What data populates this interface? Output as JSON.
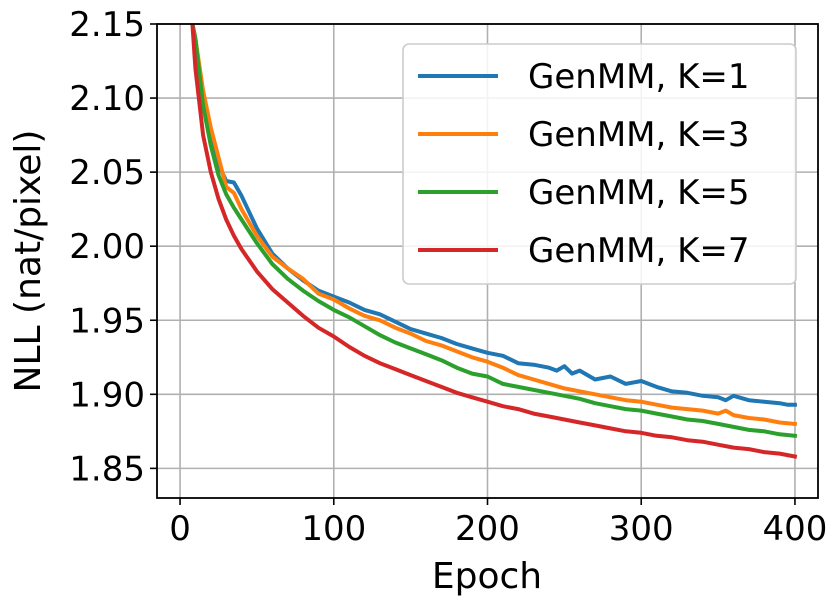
{
  "chart_data": {
    "type": "line",
    "title": "",
    "xlabel": "Epoch",
    "ylabel": "NLL (nat/pixel)",
    "xlim": [
      -15,
      415
    ],
    "ylim": [
      1.83,
      2.15
    ],
    "xticks": [
      0,
      100,
      200,
      300,
      400
    ],
    "xtick_labels": [
      "0",
      "100",
      "200",
      "300",
      "400"
    ],
    "yticks": [
      1.85,
      1.9,
      1.95,
      2.0,
      2.05,
      2.1,
      2.15
    ],
    "ytick_labels": [
      "1.85",
      "1.90",
      "1.95",
      "2.00",
      "2.05",
      "2.10",
      "2.15"
    ],
    "grid": true,
    "legend": "top-right",
    "series": [
      {
        "name": "GenMM, K=1",
        "color": "#1f77b4",
        "x": [
          8,
          10,
          15,
          20,
          25,
          30,
          35,
          40,
          50,
          60,
          70,
          80,
          90,
          100,
          110,
          120,
          130,
          140,
          150,
          160,
          170,
          180,
          190,
          200,
          210,
          220,
          230,
          240,
          245,
          250,
          255,
          260,
          270,
          280,
          290,
          300,
          310,
          320,
          330,
          340,
          350,
          355,
          360,
          370,
          380,
          390,
          395,
          400
        ],
        "y": [
          2.15,
          2.14,
          2.1,
          2.075,
          2.055,
          2.044,
          2.043,
          2.034,
          2.012,
          1.995,
          1.985,
          1.977,
          1.97,
          1.966,
          1.962,
          1.957,
          1.954,
          1.949,
          1.944,
          1.941,
          1.938,
          1.934,
          1.931,
          1.928,
          1.926,
          1.921,
          1.92,
          1.918,
          1.916,
          1.919,
          1.914,
          1.916,
          1.91,
          1.912,
          1.907,
          1.909,
          1.905,
          1.902,
          1.901,
          1.899,
          1.898,
          1.896,
          1.899,
          1.896,
          1.895,
          1.894,
          1.893,
          1.893
        ]
      },
      {
        "name": "GenMM, K=3",
        "color": "#ff7f0e",
        "x": [
          8,
          10,
          15,
          20,
          25,
          30,
          35,
          40,
          50,
          60,
          70,
          80,
          90,
          100,
          110,
          120,
          130,
          140,
          150,
          160,
          170,
          180,
          190,
          200,
          210,
          220,
          230,
          240,
          250,
          260,
          270,
          280,
          290,
          300,
          310,
          320,
          330,
          340,
          350,
          355,
          360,
          370,
          380,
          390,
          400
        ],
        "y": [
          2.15,
          2.14,
          2.105,
          2.08,
          2.06,
          2.04,
          2.036,
          2.025,
          2.007,
          1.993,
          1.985,
          1.978,
          1.968,
          1.964,
          1.958,
          1.953,
          1.95,
          1.945,
          1.941,
          1.936,
          1.933,
          1.929,
          1.925,
          1.922,
          1.918,
          1.913,
          1.91,
          1.907,
          1.904,
          1.902,
          1.9,
          1.898,
          1.896,
          1.895,
          1.893,
          1.891,
          1.89,
          1.889,
          1.887,
          1.889,
          1.886,
          1.884,
          1.883,
          1.881,
          1.88
        ]
      },
      {
        "name": "GenMM, K=5",
        "color": "#2ca02c",
        "x": [
          8,
          10,
          15,
          20,
          25,
          30,
          35,
          40,
          50,
          60,
          70,
          80,
          90,
          100,
          110,
          120,
          130,
          140,
          150,
          160,
          170,
          180,
          190,
          200,
          210,
          220,
          230,
          240,
          250,
          260,
          270,
          280,
          290,
          300,
          310,
          320,
          330,
          340,
          350,
          360,
          370,
          380,
          390,
          400
        ],
        "y": [
          2.15,
          2.14,
          2.095,
          2.068,
          2.048,
          2.035,
          2.026,
          2.018,
          2.002,
          1.988,
          1.978,
          1.97,
          1.963,
          1.957,
          1.952,
          1.946,
          1.94,
          1.935,
          1.931,
          1.927,
          1.923,
          1.918,
          1.914,
          1.912,
          1.907,
          1.905,
          1.903,
          1.901,
          1.899,
          1.897,
          1.894,
          1.892,
          1.89,
          1.889,
          1.887,
          1.885,
          1.883,
          1.882,
          1.88,
          1.878,
          1.876,
          1.875,
          1.873,
          1.872
        ]
      },
      {
        "name": "GenMM, K=7",
        "color": "#d62728",
        "x": [
          8,
          10,
          15,
          20,
          25,
          30,
          35,
          40,
          50,
          60,
          70,
          80,
          90,
          100,
          110,
          120,
          130,
          140,
          150,
          160,
          170,
          180,
          190,
          200,
          210,
          220,
          230,
          240,
          250,
          260,
          270,
          280,
          290,
          300,
          310,
          320,
          330,
          340,
          350,
          360,
          370,
          380,
          390,
          400
        ],
        "y": [
          2.15,
          2.12,
          2.075,
          2.05,
          2.032,
          2.018,
          2.007,
          1.998,
          1.983,
          1.971,
          1.962,
          1.953,
          1.945,
          1.939,
          1.932,
          1.926,
          1.921,
          1.917,
          1.913,
          1.909,
          1.905,
          1.901,
          1.898,
          1.895,
          1.892,
          1.89,
          1.887,
          1.885,
          1.883,
          1.881,
          1.879,
          1.877,
          1.875,
          1.874,
          1.872,
          1.871,
          1.869,
          1.868,
          1.866,
          1.864,
          1.863,
          1.861,
          1.86,
          1.858
        ]
      }
    ]
  }
}
